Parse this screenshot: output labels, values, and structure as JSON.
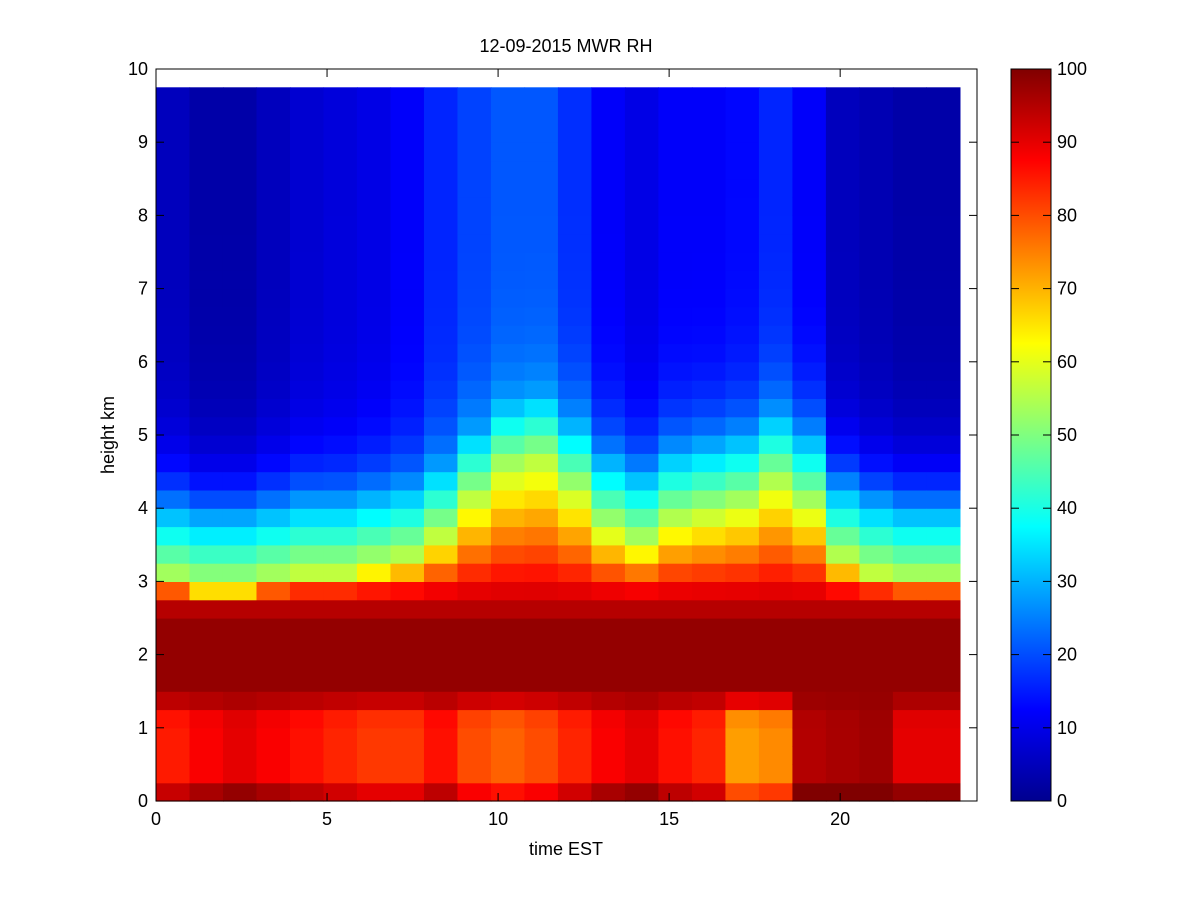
{
  "chart_data": {
    "type": "heatmap",
    "title": "12-09-2015 MWR RH",
    "xlabel": "time EST",
    "ylabel": "height km",
    "xlim": [
      0,
      24
    ],
    "ylim": [
      0,
      10
    ],
    "x_ticks": [
      "0",
      "5",
      "10",
      "15",
      "20"
    ],
    "y_ticks": [
      "0",
      "1",
      "2",
      "3",
      "4",
      "5",
      "6",
      "7",
      "8",
      "9",
      "10"
    ],
    "colorbar": {
      "colormap": "jet",
      "min": 0,
      "max": 100,
      "ticks": [
        "0",
        "10",
        "20",
        "30",
        "40",
        "50",
        "60",
        "70",
        "80",
        "90",
        "100"
      ]
    },
    "time_range_hours": [
      0,
      23.5
    ],
    "height_top_km": 9.75,
    "value_units": "%",
    "profiles": [
      {
        "time": 0.0,
        "base": 85,
        "moist_top": 3.0,
        "upper": 6
      },
      {
        "time": 1.0,
        "base": 88,
        "moist_top": 2.9,
        "upper": 4
      },
      {
        "time": 2.0,
        "base": 90,
        "moist_top": 2.9,
        "upper": 4
      },
      {
        "time": 3.0,
        "base": 88,
        "moist_top": 3.0,
        "upper": 6
      },
      {
        "time": 4.0,
        "base": 86,
        "moist_top": 3.1,
        "upper": 8
      },
      {
        "time": 5.0,
        "base": 84,
        "moist_top": 3.1,
        "upper": 9
      },
      {
        "time": 6.0,
        "base": 82,
        "moist_top": 3.2,
        "upper": 10
      },
      {
        "time": 7.0,
        "base": 82,
        "moist_top": 3.3,
        "upper": 12
      },
      {
        "time": 8.0,
        "base": 86,
        "moist_top": 3.6,
        "upper": 16
      },
      {
        "time": 9.0,
        "base": 80,
        "moist_top": 4.1,
        "upper": 19
      },
      {
        "time": 10.0,
        "base": 78,
        "moist_top": 4.5,
        "upper": 21
      },
      {
        "time": 11.0,
        "base": 80,
        "moist_top": 4.6,
        "upper": 21
      },
      {
        "time": 12.0,
        "base": 84,
        "moist_top": 4.2,
        "upper": 17
      },
      {
        "time": 13.0,
        "base": 88,
        "moist_top": 3.7,
        "upper": 12
      },
      {
        "time": 14.0,
        "base": 90,
        "moist_top": 3.5,
        "upper": 10
      },
      {
        "time": 15.0,
        "base": 86,
        "moist_top": 3.8,
        "upper": 12
      },
      {
        "time": 16.0,
        "base": 84,
        "moist_top": 3.9,
        "upper": 12
      },
      {
        "time": 17.0,
        "base": 72,
        "moist_top": 4.0,
        "upper": 13
      },
      {
        "time": 18.0,
        "base": 74,
        "moist_top": 4.3,
        "upper": 16
      },
      {
        "time": 19.0,
        "base": 95,
        "moist_top": 4.0,
        "upper": 12
      },
      {
        "time": 20.0,
        "base": 96,
        "moist_top": 3.3,
        "upper": 6
      },
      {
        "time": 21.0,
        "base": 97,
        "moist_top": 3.1,
        "upper": 5
      },
      {
        "time": 22.0,
        "base": 90,
        "moist_top": 3.0,
        "upper": 4
      },
      {
        "time": 23.0,
        "base": 90,
        "moist_top": 3.0,
        "upper": 4
      }
    ]
  }
}
